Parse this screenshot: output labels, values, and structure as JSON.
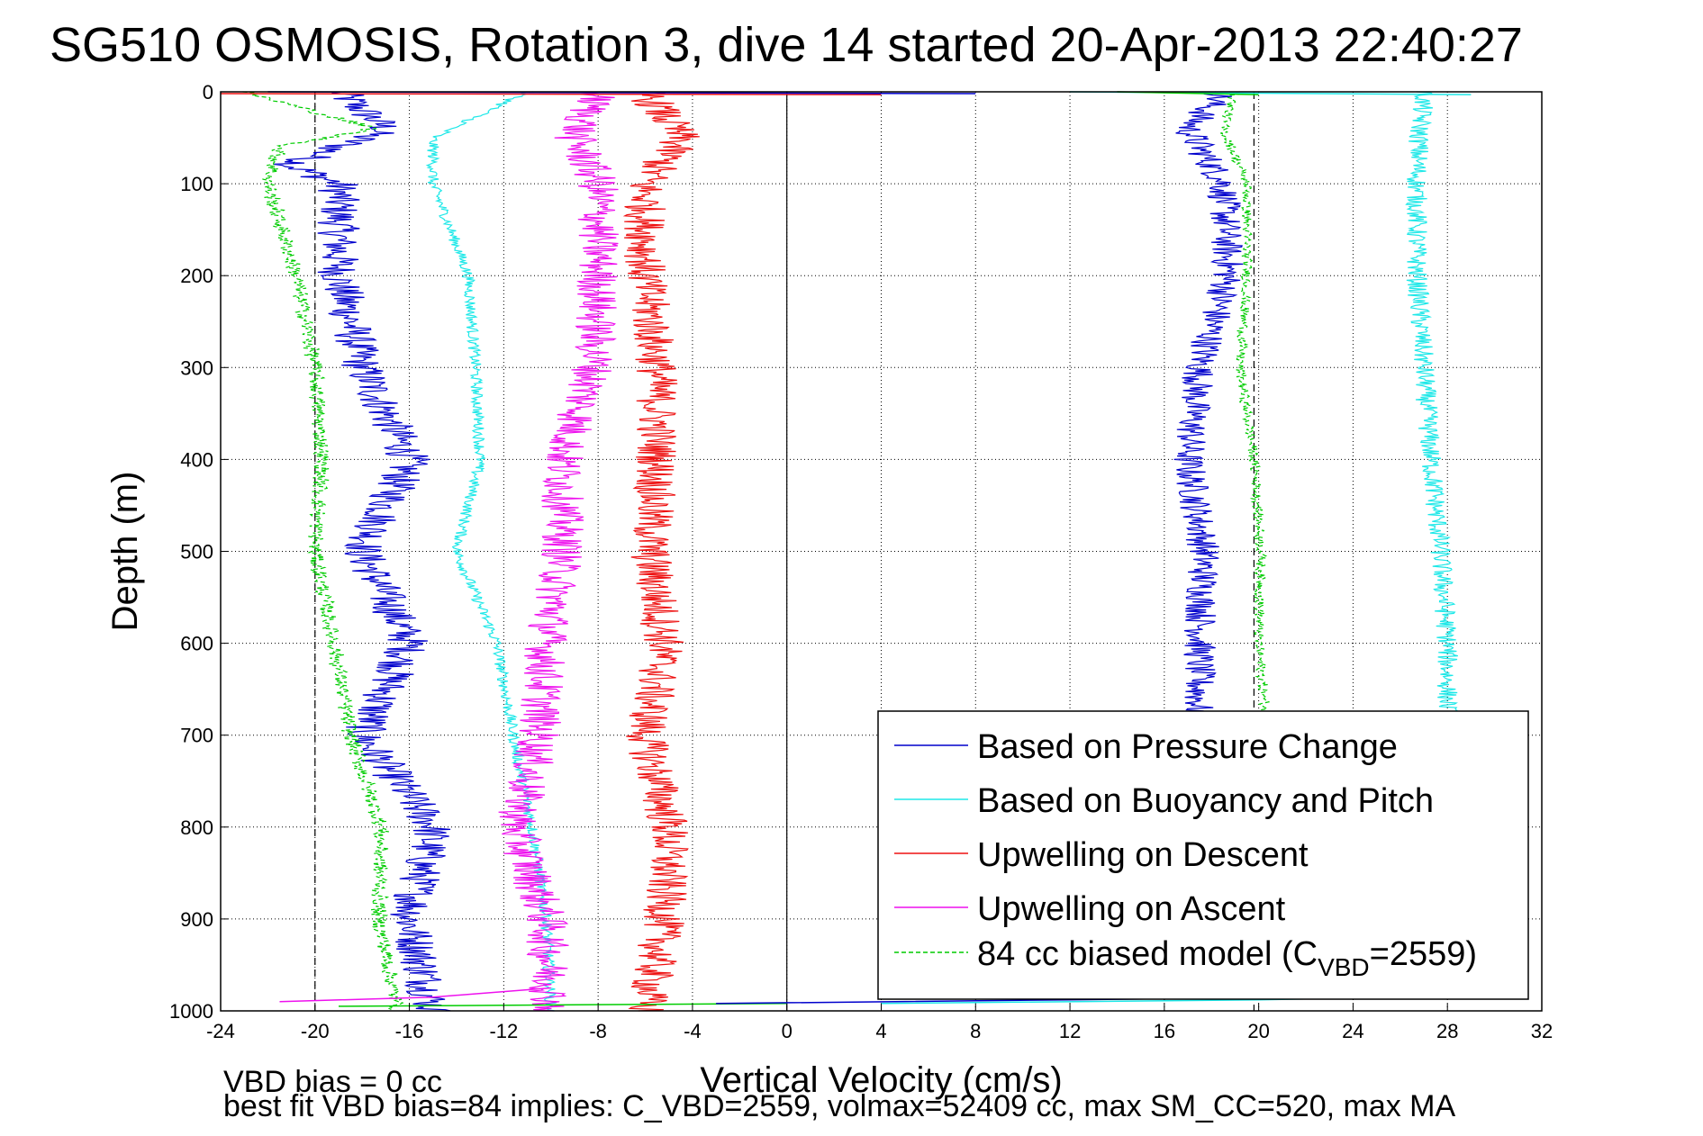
{
  "chart_data": {
    "type": "line",
    "title": "SG510 OSMOSIS, Rotation 3, dive 14 started 20-Apr-2013 22:40:27",
    "xlabel": "Vertical Velocity (cm/s)",
    "ylabel": "Depth (m)",
    "xlim": [
      -24,
      32
    ],
    "ylim": [
      0,
      1000
    ],
    "y_reversed": true,
    "grid": true,
    "x_ticks": [
      "-24",
      "-20",
      "-16",
      "-12",
      "-8",
      "-4",
      "0",
      "4",
      "8",
      "12",
      "16",
      "20",
      "24",
      "28",
      "32"
    ],
    "y_ticks": [
      "0",
      "100",
      "200",
      "300",
      "400",
      "500",
      "600",
      "700",
      "800",
      "900",
      "1000"
    ],
    "reference_lines": [
      {
        "type": "dashed",
        "x": -20
      },
      {
        "type": "solid",
        "x": 0
      },
      {
        "type": "dashed",
        "x": 19.8
      }
    ],
    "legend_position": "bottom-right",
    "legend": [
      {
        "label": "Based on Pressure Change",
        "style": "solid"
      },
      {
        "label": "Based on Buoyancy and Pitch",
        "style": "solid"
      },
      {
        "label": "Upwelling on Descent",
        "style": "solid"
      },
      {
        "label": "Upwelling on Ascent",
        "style": "solid"
      },
      {
        "label_main": "84 cc biased model (C",
        "label_sub": "VBD",
        "label_tail": "=2559)",
        "style": "dashed"
      }
    ],
    "series": [
      {
        "color": "#0000cc",
        "depth": [
          0,
          40,
          80,
          100,
          200,
          300,
          400,
          500,
          600,
          700,
          800,
          900,
          1000
        ],
        "x": [
          -19,
          -17,
          -21,
          -19,
          -19,
          -18,
          -16,
          -18,
          -16,
          -18,
          -15,
          -16,
          -15
        ],
        "noise": 0.9
      },
      {
        "color": "#0000cc",
        "depth": [
          0,
          40,
          100,
          200,
          300,
          400,
          500,
          600,
          700
        ],
        "x": [
          18.5,
          17,
          18.5,
          18.7,
          17.5,
          17,
          17.7,
          17.5,
          17.4
        ],
        "noise": 0.7
      },
      {
        "color": "#1ee8e8",
        "depth": [
          0,
          50,
          100,
          200,
          300,
          400,
          500,
          600,
          700,
          800,
          900,
          1000
        ],
        "x": [
          -11,
          -15,
          -15,
          -13.5,
          -13.2,
          -13,
          -14,
          -12.3,
          -11.6,
          -10.8,
          -10.2,
          -10
        ],
        "noise": 0.25
      },
      {
        "color": "#1ee8e8",
        "depth": [
          0,
          50,
          100,
          200,
          300,
          400,
          500,
          600,
          700
        ],
        "x": [
          27,
          26.8,
          26.7,
          26.7,
          27,
          27.3,
          27.7,
          28,
          28
        ],
        "noise": 0.45
      },
      {
        "color": "#ee1111",
        "depth": [
          0,
          50,
          100,
          200,
          300,
          400,
          500,
          600,
          700,
          800,
          900,
          1000
        ],
        "x": [
          -6,
          -4.5,
          -6,
          -6,
          -5.5,
          -5.5,
          -5.8,
          -5.2,
          -6,
          -5,
          -5.2,
          -6
        ],
        "noise": 0.9
      },
      {
        "color": "#ee11ee",
        "depth": [
          0,
          50,
          100,
          200,
          300,
          400,
          500,
          600,
          700,
          800,
          900,
          1000
        ],
        "x": [
          -8,
          -9,
          -8,
          -8,
          -8.2,
          -9.5,
          -9.5,
          -10.2,
          -10.5,
          -11.5,
          -10.2,
          -10
        ],
        "noise": 0.9
      },
      {
        "color": "#00cc00",
        "depth": [
          0,
          40,
          60,
          100,
          200,
          300,
          400,
          500,
          600,
          700,
          800,
          900,
          1000
        ],
        "x": [
          -23,
          -17.5,
          -21.5,
          -22,
          -20.8,
          -20,
          -19.7,
          -20,
          -19.2,
          -18.5,
          -17.2,
          -17.3,
          -16.5
        ],
        "noise": 0.35
      },
      {
        "color": "#00cc00",
        "depth": [
          0,
          40,
          100,
          200,
          300,
          400,
          500,
          600,
          680
        ],
        "x": [
          19,
          18.5,
          19.5,
          19.5,
          19.2,
          19.8,
          20.1,
          20,
          20.3
        ],
        "noise": 0.22
      }
    ],
    "bottom_spikes": [
      {
        "color": "#ee11ee",
        "depth": [
          990,
          985,
          975
        ],
        "x": [
          -21.5,
          -15,
          -10
        ]
      },
      {
        "color": "#00cc00",
        "depth": [
          995,
          992
        ],
        "x": [
          -19,
          0
        ]
      },
      {
        "color": "#0000cc",
        "depth": [
          992,
          988,
          984
        ],
        "x": [
          -3,
          12,
          26
        ]
      },
      {
        "color": "#1ee8e8",
        "depth": [
          992,
          988,
          983
        ],
        "x": [
          4,
          20,
          30
        ]
      }
    ],
    "top_spikes": [
      {
        "color": "#ee1111",
        "depth": [
          2,
          3
        ],
        "x": [
          -24,
          4
        ]
      },
      {
        "color": "#0000cc",
        "depth": [
          0,
          2
        ],
        "x": [
          -22,
          8
        ]
      },
      {
        "color": "#1ee8e8",
        "depth": [
          0,
          3
        ],
        "x": [
          12,
          29
        ]
      },
      {
        "color": "#00cc00",
        "depth": [
          0,
          3
        ],
        "x": [
          14,
          20
        ]
      }
    ]
  },
  "footer": {
    "line1": "VBD bias = 0 cc",
    "line2": "best fit VBD bias=84 implies: C_VBD=2559, volmax=52409 cc, max SM_CC=520, max MA"
  }
}
